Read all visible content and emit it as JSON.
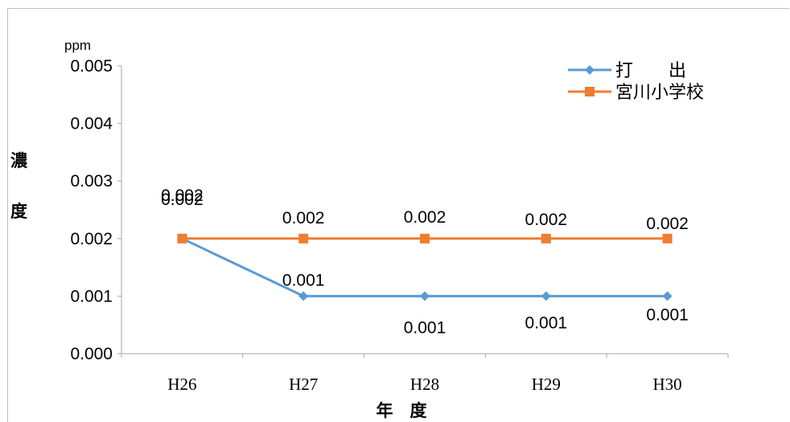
{
  "chart_data": {
    "type": "line",
    "unit_label": "ppm",
    "ylabel_chars": [
      "濃",
      "度"
    ],
    "xlabel": "年　度",
    "categories": [
      "H26",
      "H27",
      "H28",
      "H29",
      "H30"
    ],
    "ylim": [
      0,
      0.005
    ],
    "yticks": [
      "0.000",
      "0.001",
      "0.002",
      "0.003",
      "0.004",
      "0.005"
    ],
    "grid": false,
    "legend_position": "top-right",
    "series": [
      {
        "name": "打　　出",
        "color": "#5b9bd5",
        "marker": "diamond",
        "values": [
          0.002,
          0.001,
          0.001,
          0.001,
          0.001
        ],
        "labels": [
          "0.002",
          "0.001",
          "0.001",
          "0.001",
          "0.001"
        ]
      },
      {
        "name": "宮川小学校",
        "color": "#ed7d31",
        "marker": "square",
        "values": [
          0.002,
          0.002,
          0.002,
          0.002,
          0.002
        ],
        "labels": [
          "0.002",
          "0.002",
          "0.002",
          "0.002",
          "0.002"
        ]
      }
    ]
  }
}
